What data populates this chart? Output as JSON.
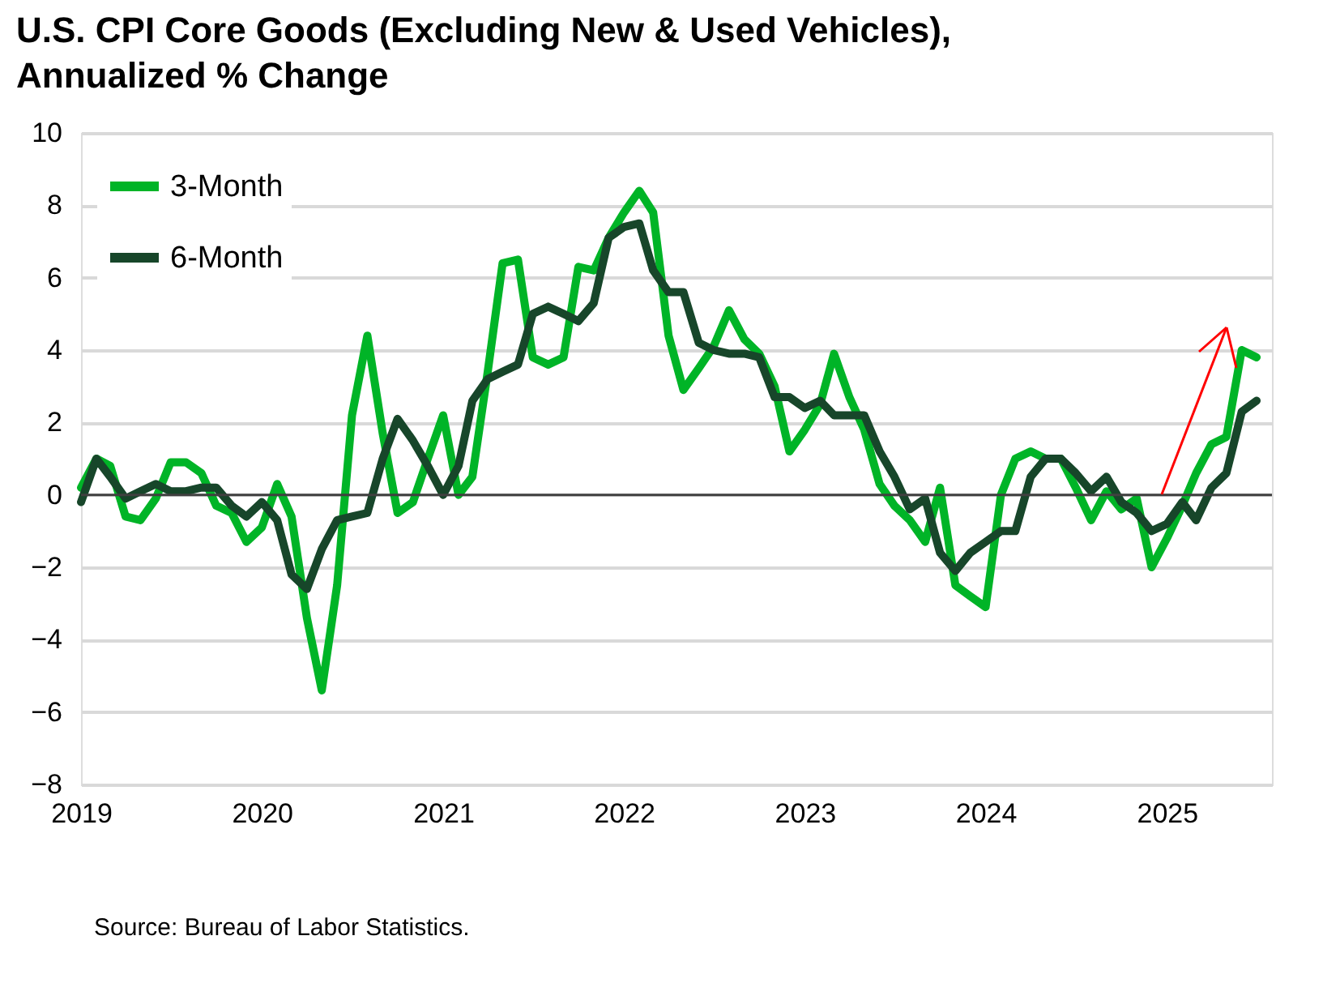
{
  "chart_data": {
    "type": "line",
    "title": "U.S. CPI Core Goods (Excluding New & Used Vehicles), Annualized % Change",
    "annotations": [
      "Source: Bureau of Labor Statistics."
    ],
    "x": [
      "2019-01",
      "2019-02",
      "2019-03",
      "2019-04",
      "2019-05",
      "2019-06",
      "2019-07",
      "2019-08",
      "2019-09",
      "2019-10",
      "2019-11",
      "2019-12",
      "2020-01",
      "2020-02",
      "2020-03",
      "2020-04",
      "2020-05",
      "2020-06",
      "2020-07",
      "2020-08",
      "2020-09",
      "2020-10",
      "2020-11",
      "2020-12",
      "2021-01",
      "2021-02",
      "2021-03",
      "2021-04",
      "2021-05",
      "2021-06",
      "2021-07",
      "2021-08",
      "2021-09",
      "2021-10",
      "2021-11",
      "2021-12",
      "2022-01",
      "2022-02",
      "2022-03",
      "2022-04",
      "2022-05",
      "2022-06",
      "2022-07",
      "2022-08",
      "2022-09",
      "2022-10",
      "2022-11",
      "2022-12",
      "2023-01",
      "2023-02",
      "2023-03",
      "2023-04",
      "2023-05",
      "2023-06",
      "2023-07",
      "2023-08",
      "2023-09",
      "2023-10",
      "2023-11",
      "2023-12",
      "2024-01",
      "2024-02",
      "2024-03",
      "2024-04",
      "2024-05",
      "2024-06",
      "2024-07",
      "2024-08",
      "2024-09",
      "2024-10",
      "2024-11",
      "2024-12",
      "2025-01",
      "2025-02",
      "2025-03",
      "2025-04",
      "2025-05",
      "2025-06",
      "2025-07"
    ],
    "series": [
      {
        "name": "3-Month",
        "color": "#00b427",
        "values": [
          0.2,
          1.0,
          0.8,
          -0.6,
          -0.7,
          -0.1,
          0.9,
          0.9,
          0.6,
          -0.3,
          -0.5,
          -1.3,
          -0.9,
          0.3,
          -0.6,
          -3.4,
          -5.4,
          -2.5,
          2.2,
          4.4,
          1.7,
          -0.5,
          -0.2,
          1.0,
          2.2,
          0.0,
          0.5,
          3.4,
          6.4,
          6.5,
          3.8,
          3.6,
          3.8,
          6.3,
          6.2,
          7.1,
          7.8,
          8.4,
          7.8,
          4.4,
          2.9,
          3.5,
          4.1,
          5.1,
          4.3,
          3.9,
          3.0,
          1.2,
          1.8,
          2.5,
          3.9,
          2.7,
          1.8,
          0.3,
          -0.3,
          -0.7,
          -1.3,
          0.2,
          -2.5,
          -2.8,
          -3.1,
          0.0,
          1.0,
          1.2,
          1.0,
          1.0,
          0.2,
          -0.7,
          0.1,
          -0.4,
          -0.1,
          -2.0,
          -1.2,
          -0.3,
          0.6,
          1.4,
          1.6,
          4.0,
          3.8
        ]
      },
      {
        "name": "6-Month",
        "color": "#17462a",
        "values": [
          -0.2,
          1.0,
          0.5,
          -0.1,
          0.1,
          0.3,
          0.1,
          0.1,
          0.2,
          0.2,
          -0.3,
          -0.6,
          -0.2,
          -0.7,
          -2.2,
          -2.6,
          -1.5,
          -0.7,
          -0.6,
          -0.5,
          1.0,
          2.1,
          1.5,
          0.8,
          0.0,
          0.8,
          2.6,
          3.2,
          3.4,
          3.6,
          5.0,
          5.2,
          5.0,
          4.8,
          5.3,
          7.1,
          7.4,
          7.5,
          6.2,
          5.6,
          5.6,
          4.2,
          4.0,
          3.9,
          3.9,
          3.8,
          2.7,
          2.7,
          2.4,
          2.6,
          2.2,
          2.2,
          2.2,
          1.2,
          0.5,
          -0.4,
          -0.1,
          -1.6,
          -2.1,
          -1.6,
          -1.3,
          -1.0,
          -1.0,
          0.5,
          1.0,
          1.0,
          0.6,
          0.1,
          0.5,
          -0.2,
          -0.5,
          -1.0,
          -0.8,
          -0.2,
          -0.7,
          0.2,
          0.6,
          2.3,
          2.6
        ]
      }
    ],
    "xlim": [
      "2019-01",
      "2025-08"
    ],
    "xticks": [
      "2019",
      "2020",
      "2021",
      "2022",
      "2023",
      "2024",
      "2025"
    ],
    "ylim": [
      -8,
      10
    ],
    "yticks": [
      -8,
      -6,
      -4,
      -2,
      0,
      2,
      4,
      6,
      8,
      10
    ],
    "ref_lines": [
      {
        "axis": "y",
        "value": 0,
        "color": "#404040"
      }
    ],
    "grid": "y",
    "legend": "top left",
    "line_style": "solid",
    "marker": "none"
  }
}
